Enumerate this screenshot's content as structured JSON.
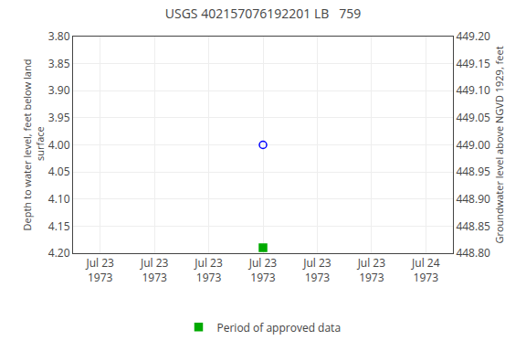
{
  "chart_data": {
    "type": "scatter",
    "title": "USGS 402157076192201 LB   759",
    "ylabel": "Depth to water level, feet below land\n surface",
    "y2label": "Groundwater level above NGVD 1929, feet",
    "categories": [
      "Jul 23\n1973",
      "Jul 23\n1973",
      "Jul 23\n1973",
      "Jul 23\n1973",
      "Jul 23\n1973",
      "Jul 23\n1973",
      "Jul 24\n1973"
    ],
    "series": [
      {
        "color": "#0000ff",
        "marker": "circle-open",
        "values": [
          null,
          null,
          null,
          4.0,
          null,
          null,
          null
        ]
      },
      {
        "name": "Period of approved data",
        "color": "#00aa00",
        "marker": "square",
        "values": [
          null,
          null,
          null,
          4.19,
          null,
          null,
          null
        ]
      }
    ],
    "ylim": [
      4.2,
      3.8
    ],
    "yticks": [
      {
        "value": 3.8,
        "label": "3.80"
      },
      3.85,
      {
        "value": 3.9,
        "label": "3.90"
      },
      3.95,
      {
        "value": 4.0,
        "label": "4.00"
      },
      4.05,
      {
        "value": 4.1,
        "label": "4.10"
      },
      4.15,
      {
        "value": 4.2,
        "label": "4.20"
      }
    ],
    "y2lim": [
      448.8,
      449.2
    ],
    "y2ticks": [
      {
        "value": 448.8,
        "label": "448.80"
      },
      448.85,
      {
        "value": 448.9,
        "label": "448.90"
      },
      448.95,
      {
        "value": 449.0,
        "label": "449.00"
      },
      449.05,
      {
        "value": 449.1,
        "label": "449.10"
      },
      449.15,
      {
        "value": 449.2,
        "label": "449.20"
      }
    ],
    "grid": true,
    "legend": "bottom"
  }
}
